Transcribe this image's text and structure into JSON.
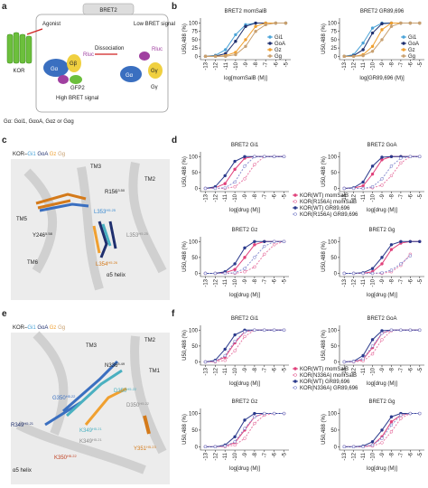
{
  "panel_labels": [
    "a",
    "b",
    "c",
    "d",
    "e",
    "f"
  ],
  "diagram_a": {
    "header": "BRET2",
    "agonist": "Agonist",
    "receptor": "KOR",
    "g_alpha": "Gα",
    "g_beta": "Gβ",
    "g_gamma": "Gγ",
    "rluc": "Rluc",
    "gfp": "GFP2",
    "dissociation": "Dissociation",
    "low": "Low BRET signal",
    "high": "High BRET signal",
    "g_alpha_2": "Gα",
    "g_gamma_2": "Gγ",
    "rluc_2": "Rluc",
    "caption": "Gα: Gαi1, GαoA, Gαz or Gαg"
  },
  "diagram_c": {
    "title": [
      "KOR–",
      "Gi1",
      "GoA",
      "Gz",
      "Gg"
    ],
    "labels": [
      {
        "text": "TM3"
      },
      {
        "text": "TM2"
      },
      {
        "text": "R156",
        "sup": "3.50"
      },
      {
        "text": "TM5"
      },
      {
        "text": "Y246",
        "sup": "5.58"
      },
      {
        "text": "L353",
        "sup": "H5.25"
      },
      {
        "text": "L353",
        "sup": "H5.25"
      },
      {
        "text": "TM6"
      },
      {
        "text": "L354",
        "sup": "H5.26"
      },
      {
        "text": "α5 helix"
      }
    ]
  },
  "diagram_e": {
    "title": [
      "KOR–",
      "Gi1",
      "GoA",
      "Gz",
      "Gg"
    ],
    "labels": [
      {
        "text": "TM3"
      },
      {
        "text": "TM2"
      },
      {
        "text": "N336",
        "sup": "8.49"
      },
      {
        "text": "TM1"
      },
      {
        "text": "G350",
        "sup": "H5.22"
      },
      {
        "text": "D350",
        "sup": "H5.22"
      },
      {
        "text": "D350",
        "sup": "H5.22"
      },
      {
        "text": "R349",
        "sup": "H5.21"
      },
      {
        "text": "K349",
        "sup": "H5.21"
      },
      {
        "text": "K349",
        "sup": "H5.21"
      },
      {
        "text": "Y351",
        "sup": "H5.23"
      },
      {
        "text": "K350",
        "sup": "H5.22"
      },
      {
        "text": "α5 helix"
      }
    ]
  },
  "chart_data": [
    {
      "type": "line",
      "title": "BRET2 momSalB",
      "xlabel": "log[momSalB (M)]",
      "ylabel": "U50,488 (%)",
      "x": [
        -13,
        -12,
        -11,
        -10,
        -9,
        -8,
        -7,
        -6,
        -5
      ],
      "xlim": [
        -13.5,
        -4.5
      ],
      "xticks": [
        -13,
        -12,
        -11,
        -10,
        -9,
        -8,
        -7,
        -6,
        -5
      ],
      "ylim": [
        -10,
        115
      ],
      "yticks": [
        0,
        25,
        50,
        75,
        100
      ],
      "legend": "lower right",
      "series": [
        {
          "name": "Gi1",
          "color": "#4aa3d8",
          "values": [
            0,
            3,
            20,
            65,
            95,
            100,
            100,
            100,
            100
          ]
        },
        {
          "name": "GoA",
          "color": "#1f2f6e",
          "values": [
            0,
            1,
            8,
            45,
            90,
            100,
            100,
            100,
            100
          ]
        },
        {
          "name": "Gz",
          "color": "#f0a030",
          "values": [
            0,
            0,
            2,
            12,
            50,
            90,
            100,
            100,
            100
          ]
        },
        {
          "name": "Gg",
          "color": "#c8a070",
          "values": [
            0,
            0,
            0,
            5,
            30,
            75,
            95,
            100,
            100
          ]
        }
      ]
    },
    {
      "type": "line",
      "title": "BRET2 GR89,696",
      "xlabel": "log[GR89,696 (M)]",
      "ylabel": "U50,488 (%)",
      "x": [
        -13,
        -12,
        -11,
        -10,
        -9,
        -8,
        -7,
        -6,
        -5
      ],
      "xlim": [
        -13.5,
        -4.5
      ],
      "xticks": [
        -13,
        -12,
        -11,
        -10,
        -9,
        -8,
        -7,
        -6,
        -5
      ],
      "ylim": [
        -10,
        115
      ],
      "yticks": [
        0,
        25,
        50,
        75,
        100
      ],
      "legend": "lower right",
      "series": [
        {
          "name": "Gi1",
          "color": "#4aa3d8",
          "values": [
            0,
            5,
            40,
            85,
            100,
            100,
            100,
            100,
            100
          ]
        },
        {
          "name": "GoA",
          "color": "#1f2f6e",
          "values": [
            0,
            2,
            20,
            70,
            98,
            100,
            100,
            100,
            100
          ]
        },
        {
          "name": "Gz",
          "color": "#f0a030",
          "values": [
            0,
            0,
            5,
            30,
            80,
            100,
            100,
            100,
            100
          ]
        },
        {
          "name": "Gg",
          "color": "#c8a070",
          "values": [
            0,
            0,
            2,
            15,
            50,
            90,
            100,
            100,
            100
          ]
        }
      ]
    },
    {
      "type": "line",
      "title": "BRET2 Gi1",
      "xlabel": "log[drug (M)]",
      "ylabel": "U50,488 (%)",
      "x": [
        -13,
        -12,
        -11,
        -10,
        -9,
        -8,
        -7,
        -6,
        -5
      ],
      "xlim": [
        -13.5,
        -4.5
      ],
      "xticks": [
        -13,
        -12,
        -11,
        -10,
        -9,
        -8,
        -7,
        -6,
        -5
      ],
      "ylim": [
        -10,
        115
      ],
      "yticks": [
        0,
        50,
        100
      ],
      "legend": "right",
      "series": [
        {
          "name": "KOR(WT) momSalB",
          "color": "#e0407a",
          "dashed": false,
          "values": [
            0,
            2,
            15,
            60,
            95,
            100,
            100,
            100,
            100
          ]
        },
        {
          "name": "KOR(R156A) momSalB",
          "color": "#e87aa5",
          "dashed": true,
          "values": [
            0,
            0,
            0,
            5,
            30,
            75,
            100,
            100,
            100
          ]
        },
        {
          "name": "KOR(WT) GR89,696",
          "color": "#2b3a8c",
          "dashed": false,
          "values": [
            0,
            5,
            40,
            85,
            100,
            100,
            100,
            100,
            100
          ]
        },
        {
          "name": "KOR(R156A) GR89,696",
          "color": "#8a8fd0",
          "dashed": true,
          "values": [
            0,
            0,
            2,
            20,
            70,
            100,
            100,
            100,
            100
          ]
        }
      ]
    },
    {
      "type": "line",
      "title": "BRET2 GoA",
      "xlabel": "log[drug (M)]",
      "ylabel": "U50,488 (%)",
      "x": [
        -13,
        -12,
        -11,
        -10,
        -9,
        -8,
        -7,
        -6,
        -5
      ],
      "xlim": [
        -13.5,
        -4.5
      ],
      "xticks": [
        -13,
        -12,
        -11,
        -10,
        -9,
        -8,
        -7,
        -6,
        -5
      ],
      "ylim": [
        -10,
        115
      ],
      "yticks": [
        0,
        50,
        100
      ],
      "series": [
        {
          "color": "#e0407a",
          "dashed": false,
          "values": [
            0,
            1,
            8,
            45,
            90,
            100,
            100,
            100,
            100
          ]
        },
        {
          "color": "#e87aa5",
          "dashed": true,
          "values": [
            0,
            0,
            0,
            2,
            10,
            40,
            80,
            100,
            100
          ]
        },
        {
          "color": "#2b3a8c",
          "dashed": false,
          "values": [
            0,
            2,
            20,
            70,
            98,
            100,
            100,
            100,
            100
          ]
        },
        {
          "color": "#8a8fd0",
          "dashed": true,
          "values": [
            0,
            0,
            0,
            5,
            30,
            70,
            95,
            100,
            100
          ]
        }
      ]
    },
    {
      "type": "line",
      "title": "BRET2 Gz",
      "xlabel": "log[drug (M)]",
      "ylabel": "U50,488 (%)",
      "x": [
        -13,
        -12,
        -11,
        -10,
        -9,
        -8,
        -7,
        -6,
        -5
      ],
      "xlim": [
        -13.5,
        -4.5
      ],
      "xticks": [
        -13,
        -12,
        -11,
        -10,
        -9,
        -8,
        -7,
        -6,
        -5
      ],
      "ylim": [
        -10,
        115
      ],
      "yticks": [
        0,
        50,
        100
      ],
      "series": [
        {
          "color": "#e0407a",
          "dashed": false,
          "values": [
            0,
            0,
            2,
            12,
            50,
            90,
            100,
            100,
            100
          ]
        },
        {
          "color": "#e87aa5",
          "dashed": true,
          "values": [
            0,
            0,
            0,
            0,
            5,
            20,
            60,
            90,
            100
          ]
        },
        {
          "color": "#2b3a8c",
          "dashed": false,
          "values": [
            0,
            0,
            5,
            30,
            80,
            100,
            100,
            100,
            100
          ]
        },
        {
          "color": "#8a8fd0",
          "dashed": true,
          "values": [
            0,
            0,
            0,
            2,
            15,
            50,
            85,
            100,
            100
          ]
        }
      ]
    },
    {
      "type": "line",
      "title": "BRET2 Gg",
      "xlabel": "log[drug (M)]",
      "ylabel": "U50,488 (%)",
      "x": [
        -13,
        -12,
        -11,
        -10,
        -9,
        -8,
        -7,
        -6,
        -5
      ],
      "xlim": [
        -13.5,
        -4.5
      ],
      "xticks": [
        -13,
        -12,
        -11,
        -10,
        -9,
        -8,
        -7,
        -6,
        -5
      ],
      "ylim": [
        -10,
        115
      ],
      "yticks": [
        0,
        50,
        100
      ],
      "series": [
        {
          "color": "#e0407a",
          "dashed": false,
          "values": [
            0,
            0,
            0,
            5,
            30,
            75,
            95,
            100,
            100
          ]
        },
        {
          "color": "#e87aa5",
          "dashed": true,
          "values": [
            0,
            0,
            0,
            0,
            0,
            5,
            25,
            60,
            null
          ]
        },
        {
          "color": "#2b3a8c",
          "dashed": false,
          "values": [
            0,
            0,
            2,
            15,
            50,
            90,
            100,
            100,
            100
          ]
        },
        {
          "color": "#8a8fd0",
          "dashed": true,
          "values": [
            0,
            0,
            0,
            0,
            2,
            10,
            30,
            55,
            null
          ]
        }
      ]
    },
    {
      "type": "line",
      "title": "BRET2 Gi1",
      "xlabel": "log[drug (M)]",
      "ylabel": "U50,488 (%)",
      "x": [
        -13,
        -12,
        -11,
        -10,
        -9,
        -8,
        -7,
        -6,
        -5
      ],
      "xlim": [
        -13.5,
        -4.5
      ],
      "xticks": [
        -13,
        -12,
        -11,
        -10,
        -9,
        -8,
        -7,
        -6,
        -5
      ],
      "ylim": [
        -10,
        115
      ],
      "yticks": [
        0,
        50,
        100
      ],
      "legend": "right",
      "series": [
        {
          "name": "KOR(WT) momSalB",
          "color": "#e0407a",
          "dashed": false,
          "values": [
            0,
            2,
            15,
            60,
            95,
            100,
            100,
            100,
            100
          ]
        },
        {
          "name": "KOR(N336A) momSalB",
          "color": "#e87aa5",
          "dashed": true,
          "values": [
            0,
            0,
            5,
            35,
            80,
            100,
            100,
            100,
            100
          ]
        },
        {
          "name": "KOR(WT) GR89,696",
          "color": "#2b3a8c",
          "dashed": false,
          "values": [
            0,
            5,
            40,
            85,
            100,
            100,
            100,
            100,
            100
          ]
        },
        {
          "name": "KOR(N336A) GR89,696",
          "color": "#8a8fd0",
          "dashed": true,
          "values": [
            0,
            2,
            20,
            65,
            95,
            100,
            100,
            100,
            100
          ]
        }
      ]
    },
    {
      "type": "line",
      "title": "BRET2 GoA",
      "xlabel": "log[drug (M)]",
      "ylabel": "U50,488 (%)",
      "x": [
        -13,
        -12,
        -11,
        -10,
        -9,
        -8,
        -7,
        -6,
        -5
      ],
      "xlim": [
        -13.5,
        -4.5
      ],
      "xticks": [
        -13,
        -12,
        -11,
        -10,
        -9,
        -8,
        -7,
        -6,
        -5
      ],
      "ylim": [
        -10,
        115
      ],
      "yticks": [
        0,
        50,
        100
      ],
      "series": [
        {
          "color": "#e0407a",
          "dashed": false,
          "values": [
            0,
            1,
            8,
            45,
            90,
            100,
            100,
            100,
            100
          ]
        },
        {
          "color": "#e87aa5",
          "dashed": true,
          "values": [
            0,
            0,
            3,
            25,
            70,
            98,
            100,
            100,
            100
          ]
        },
        {
          "color": "#2b3a8c",
          "dashed": false,
          "values": [
            0,
            2,
            20,
            70,
            98,
            100,
            100,
            100,
            100
          ]
        },
        {
          "color": "#8a8fd0",
          "dashed": true,
          "values": [
            0,
            1,
            10,
            50,
            90,
            100,
            100,
            100,
            100
          ]
        }
      ]
    },
    {
      "type": "line",
      "title": "BRET2 Gz",
      "xlabel": "log[drug (M)]",
      "ylabel": "U50,488 (%)",
      "x": [
        -13,
        -12,
        -11,
        -10,
        -9,
        -8,
        -7,
        -6,
        -5
      ],
      "xlim": [
        -13.5,
        -4.5
      ],
      "xticks": [
        -13,
        -12,
        -11,
        -10,
        -9,
        -8,
        -7,
        -6,
        -5
      ],
      "ylim": [
        -10,
        115
      ],
      "yticks": [
        0,
        50,
        100
      ],
      "series": [
        {
          "color": "#e0407a",
          "dashed": false,
          "values": [
            0,
            0,
            2,
            12,
            50,
            90,
            100,
            100,
            100
          ]
        },
        {
          "color": "#e87aa5",
          "dashed": true,
          "values": [
            0,
            0,
            0,
            5,
            25,
            70,
            95,
            100,
            100
          ]
        },
        {
          "color": "#2b3a8c",
          "dashed": false,
          "values": [
            0,
            0,
            5,
            30,
            80,
            100,
            100,
            100,
            100
          ]
        },
        {
          "color": "#8a8fd0",
          "dashed": true,
          "values": [
            0,
            0,
            2,
            15,
            55,
            90,
            100,
            100,
            100
          ]
        }
      ]
    },
    {
      "type": "line",
      "title": "BRET2 Gg",
      "xlabel": "log[drug (M)]",
      "ylabel": "U50,488 (%)",
      "x": [
        -13,
        -12,
        -11,
        -10,
        -9,
        -8,
        -7,
        -6,
        -5
      ],
      "xlim": [
        -13.5,
        -4.5
      ],
      "xticks": [
        -13,
        -12,
        -11,
        -10,
        -9,
        -8,
        -7,
        -6,
        -5
      ],
      "ylim": [
        -10,
        115
      ],
      "yticks": [
        0,
        50,
        100
      ],
      "series": [
        {
          "color": "#e0407a",
          "dashed": false,
          "values": [
            0,
            0,
            0,
            5,
            30,
            75,
            95,
            100,
            100
          ]
        },
        {
          "color": "#e87aa5",
          "dashed": true,
          "values": [
            0,
            0,
            0,
            2,
            12,
            45,
            85,
            100,
            100
          ]
        },
        {
          "color": "#2b3a8c",
          "dashed": false,
          "values": [
            0,
            0,
            2,
            15,
            50,
            90,
            100,
            100,
            100
          ]
        },
        {
          "color": "#8a8fd0",
          "dashed": true,
          "values": [
            0,
            0,
            0,
            5,
            25,
            65,
            95,
            100,
            100
          ]
        }
      ]
    }
  ]
}
